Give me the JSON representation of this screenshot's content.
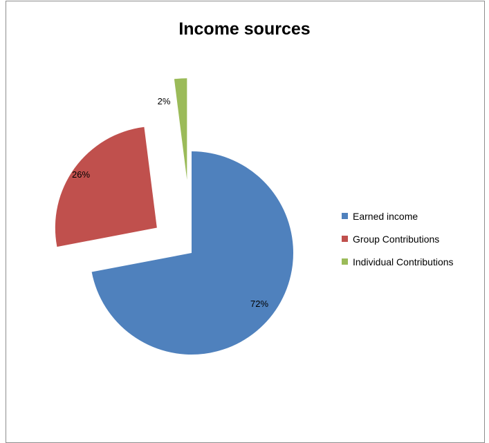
{
  "chart_data": {
    "type": "pie",
    "title": "Income sources",
    "categories": [
      "Earned income",
      "Group Contributions",
      "Individual Contributions"
    ],
    "values": [
      72,
      26,
      2
    ],
    "data_labels": [
      "72%",
      "26%",
      "2%"
    ],
    "exploded": true,
    "legend_position": "right",
    "colors": [
      "#4f81bd",
      "#c0504d",
      "#9bbb59"
    ]
  }
}
